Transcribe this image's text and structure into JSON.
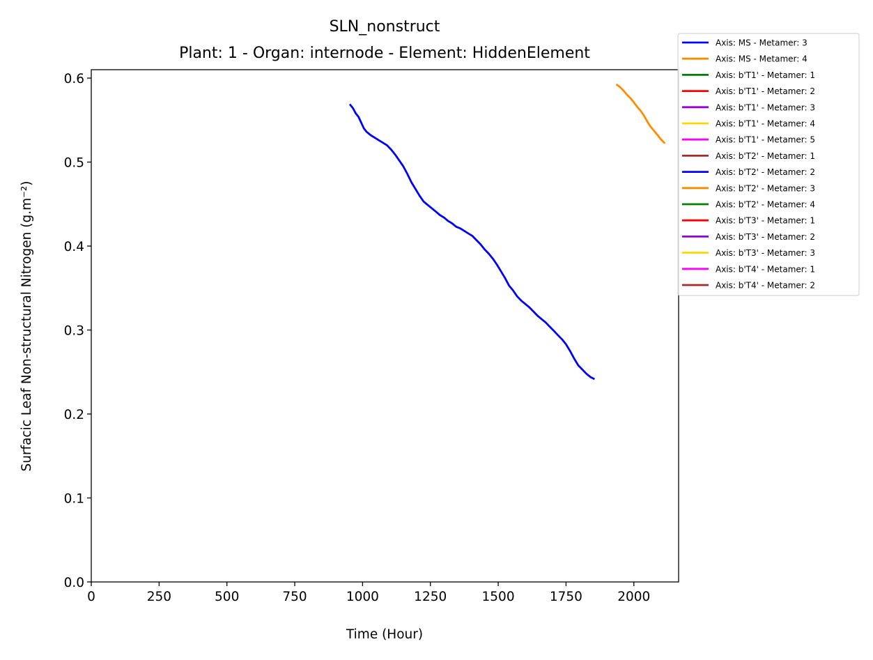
{
  "chart_data": {
    "type": "line",
    "title": "SLN_nonstruct",
    "subtitle": "Plant: 1 - Organ: internode - Element: HiddenElement",
    "xlabel": "Time (Hour)",
    "ylabel": "Surfacic Leaf Non-structural Nitrogen (g.m⁻²)",
    "xlim": [
      0,
      2165
    ],
    "ylim": [
      0,
      0.61
    ],
    "xticks": [
      0,
      250,
      500,
      750,
      1000,
      1250,
      1500,
      1750,
      2000
    ],
    "yticks": [
      0.0,
      0.1,
      0.2,
      0.3,
      0.4,
      0.5,
      0.6
    ],
    "ytick_labels": [
      "0.0",
      "0.1",
      "0.2",
      "0.3",
      "0.4",
      "0.5",
      "0.6"
    ],
    "grid": false,
    "legend_position": "outside-top-right",
    "series": [
      {
        "name": "Axis: MS - Metamer: 3",
        "color": "#0000ff",
        "x": [
          955,
          965,
          975,
          985,
          995,
          1005,
          1015,
          1030,
          1045,
          1060,
          1075,
          1090,
          1105,
          1120,
          1135,
          1150,
          1165,
          1180,
          1195,
          1210,
          1225,
          1240,
          1255,
          1270,
          1285,
          1300,
          1315,
          1330,
          1345,
          1360,
          1375,
          1390,
          1405,
          1420,
          1435,
          1450,
          1465,
          1480,
          1495,
          1510,
          1525,
          1540,
          1555,
          1570,
          1585,
          1600,
          1615,
          1630,
          1645,
          1660,
          1675,
          1690,
          1705,
          1720,
          1735,
          1750,
          1765,
          1780,
          1795,
          1810,
          1825,
          1840,
          1852
        ],
        "y": [
          0.568,
          0.564,
          0.558,
          0.554,
          0.547,
          0.54,
          0.536,
          0.532,
          0.529,
          0.526,
          0.523,
          0.52,
          0.515,
          0.509,
          0.502,
          0.495,
          0.486,
          0.476,
          0.468,
          0.46,
          0.453,
          0.449,
          0.445,
          0.441,
          0.437,
          0.434,
          0.43,
          0.427,
          0.423,
          0.421,
          0.418,
          0.415,
          0.412,
          0.407,
          0.402,
          0.396,
          0.391,
          0.385,
          0.378,
          0.37,
          0.362,
          0.353,
          0.347,
          0.34,
          0.335,
          0.331,
          0.327,
          0.322,
          0.317,
          0.313,
          0.309,
          0.304,
          0.299,
          0.294,
          0.289,
          0.283,
          0.275,
          0.266,
          0.258,
          0.253,
          0.248,
          0.244,
          0.242
        ]
      },
      {
        "name": "Axis: MS - Metamer: 4",
        "color": "#ff8c00",
        "x": [
          1938,
          1950,
          1962,
          1975,
          1988,
          2000,
          2012,
          2025,
          2038,
          2050,
          2062,
          2075,
          2088,
          2100,
          2112
        ],
        "y": [
          0.592,
          0.589,
          0.585,
          0.58,
          0.576,
          0.571,
          0.566,
          0.561,
          0.555,
          0.548,
          0.542,
          0.537,
          0.532,
          0.527,
          0.523
        ]
      },
      {
        "name": "Axis: b'T1' - Metamer: 1",
        "color": "#008000",
        "x": [],
        "y": []
      },
      {
        "name": "Axis: b'T1' - Metamer: 2",
        "color": "#ff0000",
        "x": [],
        "y": []
      },
      {
        "name": "Axis: b'T1' - Metamer: 3",
        "color": "#9400d3",
        "x": [],
        "y": []
      },
      {
        "name": "Axis: b'T1' - Metamer: 4",
        "color": "#ffd700",
        "x": [],
        "y": []
      },
      {
        "name": "Axis: b'T1' - Metamer: 5",
        "color": "#ff00ff",
        "x": [],
        "y": []
      },
      {
        "name": "Axis: b'T2' - Metamer: 1",
        "color": "#a52a2a",
        "x": [],
        "y": []
      },
      {
        "name": "Axis: b'T2' - Metamer: 2",
        "color": "#0000ff",
        "x": [],
        "y": []
      },
      {
        "name": "Axis: b'T2' - Metamer: 3",
        "color": "#ff8c00",
        "x": [],
        "y": []
      },
      {
        "name": "Axis: b'T2' - Metamer: 4",
        "color": "#008000",
        "x": [],
        "y": []
      },
      {
        "name": "Axis: b'T3' - Metamer: 1",
        "color": "#ff0000",
        "x": [],
        "y": []
      },
      {
        "name": "Axis: b'T3' - Metamer: 2",
        "color": "#9400d3",
        "x": [],
        "y": []
      },
      {
        "name": "Axis: b'T3' - Metamer: 3",
        "color": "#ffd700",
        "x": [],
        "y": []
      },
      {
        "name": "Axis: b'T4' - Metamer: 1",
        "color": "#ff00ff",
        "x": [],
        "y": []
      },
      {
        "name": "Axis: b'T4' - Metamer: 2",
        "color": "#a52a2a",
        "x": [],
        "y": []
      }
    ]
  }
}
